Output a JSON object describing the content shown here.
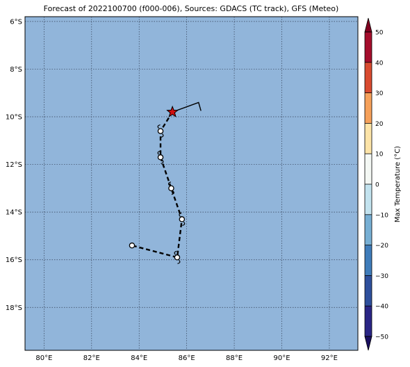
{
  "title": "Forecast of 2022100700 (f000-006), Sources: GDACS (TC track), GFS (Meteo)",
  "colors": {
    "ocean": "#91b5da",
    "grid": "#333f55",
    "track_line": "#000000",
    "origin_star": "#d01010"
  },
  "map": {
    "lon_range": [
      79.2,
      93.2
    ],
    "lat_range": [
      -19.8,
      -5.8
    ],
    "lon_ticks": [
      {
        "value": 80,
        "label": "80°E"
      },
      {
        "value": 82,
        "label": "82°E"
      },
      {
        "value": 84,
        "label": "84°E"
      },
      {
        "value": 86,
        "label": "86°E"
      },
      {
        "value": 88,
        "label": "88°E"
      },
      {
        "value": 90,
        "label": "90°E"
      },
      {
        "value": 92,
        "label": "92°E"
      }
    ],
    "lat_ticks": [
      {
        "value": -6,
        "label": "6°S"
      },
      {
        "value": -8,
        "label": "8°S"
      },
      {
        "value": -10,
        "label": "10°S"
      },
      {
        "value": -12,
        "label": "12°S"
      },
      {
        "value": -14,
        "label": "14°S"
      },
      {
        "value": -16,
        "label": "16°S"
      },
      {
        "value": -18,
        "label": "18°S"
      }
    ],
    "past_track": [
      {
        "lon": 86.6,
        "lat": -9.75
      },
      {
        "lon": 86.5,
        "lat": -9.4
      },
      {
        "lon": 85.4,
        "lat": -9.8
      }
    ],
    "origin": {
      "lon": 85.4,
      "lat": -9.8,
      "icon": "star-icon"
    },
    "forecast_track": [
      {
        "lon": 85.4,
        "lat": -9.8
      },
      {
        "lon": 84.9,
        "lat": -10.6
      },
      {
        "lon": 84.9,
        "lat": -11.7
      },
      {
        "lon": 85.35,
        "lat": -13.0
      },
      {
        "lon": 85.8,
        "lat": -14.3
      },
      {
        "lon": 85.6,
        "lat": -15.9
      },
      {
        "lon": 83.7,
        "lat": -15.4
      }
    ],
    "forecast_points": [
      {
        "lon": 84.9,
        "lat": -10.6,
        "icon": "cyclone-icon"
      },
      {
        "lon": 84.9,
        "lat": -11.7,
        "icon": "cyclone-icon"
      },
      {
        "lon": 85.35,
        "lat": -13.0,
        "icon": "cyclone-icon"
      },
      {
        "lon": 85.8,
        "lat": -14.3,
        "icon": "cyclone-icon"
      },
      {
        "lon": 85.6,
        "lat": -15.9,
        "icon": "cyclone-icon"
      },
      {
        "lon": 83.7,
        "lat": -15.4,
        "icon": "low-pressure-icon"
      }
    ]
  },
  "colorbar": {
    "label": "Max Temperature (°C)",
    "range": [
      -50,
      50
    ],
    "bands": [
      {
        "from": -50,
        "to": -40,
        "color": "#2a2585"
      },
      {
        "from": -40,
        "to": -30,
        "color": "#2e4f9c"
      },
      {
        "from": -30,
        "to": -20,
        "color": "#3f7cba"
      },
      {
        "from": -20,
        "to": -10,
        "color": "#77afd4"
      },
      {
        "from": -10,
        "to": 0,
        "color": "#c3e3ef"
      },
      {
        "from": 0,
        "to": 10,
        "color": "#f4f8f4"
      },
      {
        "from": 10,
        "to": 20,
        "color": "#fde4a8"
      },
      {
        "from": 20,
        "to": 30,
        "color": "#f6a15a"
      },
      {
        "from": 30,
        "to": 40,
        "color": "#d94b30"
      },
      {
        "from": 40,
        "to": 50,
        "color": "#a50d2c"
      }
    ],
    "under_color": "#1a1060",
    "over_color": "#800020",
    "ticks": [
      {
        "value": 50,
        "label": "50"
      },
      {
        "value": 40,
        "label": "40"
      },
      {
        "value": 30,
        "label": "30"
      },
      {
        "value": 20,
        "label": "20"
      },
      {
        "value": 10,
        "label": "10"
      },
      {
        "value": 0,
        "label": "0"
      },
      {
        "value": -10,
        "label": "−10"
      },
      {
        "value": -20,
        "label": "−20"
      },
      {
        "value": -30,
        "label": "−30"
      },
      {
        "value": -40,
        "label": "−40"
      },
      {
        "value": -50,
        "label": "−50"
      }
    ]
  }
}
